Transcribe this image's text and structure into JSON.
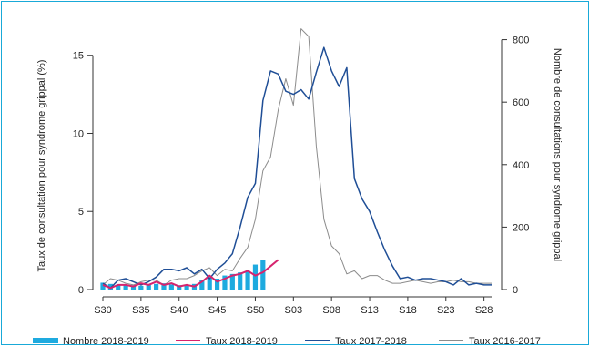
{
  "chart_data": {
    "type": "bar+line",
    "y_left_label": "Taux de consultation pour syndrome grippal (%)",
    "y_right_label": "Nombre de consultations pour syndrome grippal",
    "y_left_ticks": [
      0,
      5,
      10,
      15
    ],
    "y_left_lim": [
      0,
      16.5
    ],
    "y_right_ticks": [
      0,
      200,
      400,
      600,
      800
    ],
    "y_right_lim": [
      0,
      825
    ],
    "x_tick_labels": [
      "S30",
      "S35",
      "S40",
      "S45",
      "S50",
      "S03",
      "S08",
      "S13",
      "S18",
      "S23",
      "S28"
    ],
    "x_weeks": [
      "S30",
      "S31",
      "S32",
      "S33",
      "S34",
      "S35",
      "S36",
      "S37",
      "S38",
      "S39",
      "S40",
      "S41",
      "S42",
      "S43",
      "S44",
      "S45",
      "S46",
      "S47",
      "S48",
      "S49",
      "S50",
      "S51",
      "S52",
      "S01",
      "S02",
      "S03",
      "S04",
      "S05",
      "S06",
      "S07",
      "S08",
      "S09",
      "S10",
      "S11",
      "S12",
      "S13",
      "S14",
      "S15",
      "S16",
      "S17",
      "S18",
      "S19",
      "S20",
      "S21",
      "S22",
      "S23",
      "S24",
      "S25",
      "S26",
      "S27",
      "S28",
      "S29"
    ],
    "series": [
      {
        "name": "Nombre 2018-2019",
        "kind": "bar",
        "axis": "right",
        "color": "#1eaadf",
        "values": [
          22,
          18,
          15,
          16,
          14,
          12,
          15,
          18,
          20,
          16,
          14,
          16,
          18,
          30,
          40,
          35,
          45,
          50,
          55,
          60,
          80,
          95
        ]
      },
      {
        "name": "Taux 2018-2019",
        "kind": "line",
        "axis": "left",
        "color": "#d6246e",
        "values": [
          0.3,
          0.1,
          0.3,
          0.3,
          0.2,
          0.4,
          0.3,
          0.5,
          0.3,
          0.4,
          0.2,
          0.3,
          0.2,
          0.5,
          0.9,
          0.5,
          0.7,
          0.9,
          1.0,
          1.2,
          0.9,
          1.1,
          1.5,
          1.9
        ]
      },
      {
        "name": "Taux 2017-2018",
        "kind": "line",
        "axis": "left",
        "color": "#1f4e96",
        "values": [
          0.4,
          0.1,
          0.6,
          0.7,
          0.5,
          0.3,
          0.5,
          0.8,
          1.3,
          1.3,
          1.2,
          1.4,
          1.0,
          1.3,
          0.7,
          1.3,
          1.7,
          2.3,
          4.0,
          5.9,
          6.8,
          12.1,
          14.0,
          13.8,
          12.7,
          12.5,
          12.8,
          12.2,
          13.9,
          15.5,
          14.0,
          13.0,
          14.2,
          7.1,
          5.8,
          5.0,
          3.7,
          2.5,
          1.5,
          0.7,
          0.8,
          0.6,
          0.7,
          0.7,
          0.6,
          0.5,
          0.3,
          0.7,
          0.3,
          0.4,
          0.3,
          0.3
        ]
      },
      {
        "name": "Taux 2016-2017",
        "kind": "line",
        "axis": "left",
        "color": "#8c8c8c",
        "values": [
          0.3,
          0.7,
          0.6,
          0.4,
          0.3,
          0.5,
          0.6,
          0.6,
          0.3,
          0.6,
          0.7,
          0.7,
          0.9,
          1.2,
          1.4,
          0.9,
          1.3,
          1.2,
          2.0,
          2.7,
          4.5,
          7.6,
          8.5,
          11.5,
          13.5,
          11.8,
          16.7,
          16.2,
          9.2,
          4.5,
          2.8,
          2.3,
          1.0,
          1.2,
          0.7,
          0.9,
          0.9,
          0.6,
          0.4,
          0.4,
          0.5,
          0.6,
          0.5,
          0.4,
          0.5,
          0.5,
          0.6,
          0.5,
          0.5,
          0.4,
          0.4,
          0.4
        ]
      }
    ]
  }
}
